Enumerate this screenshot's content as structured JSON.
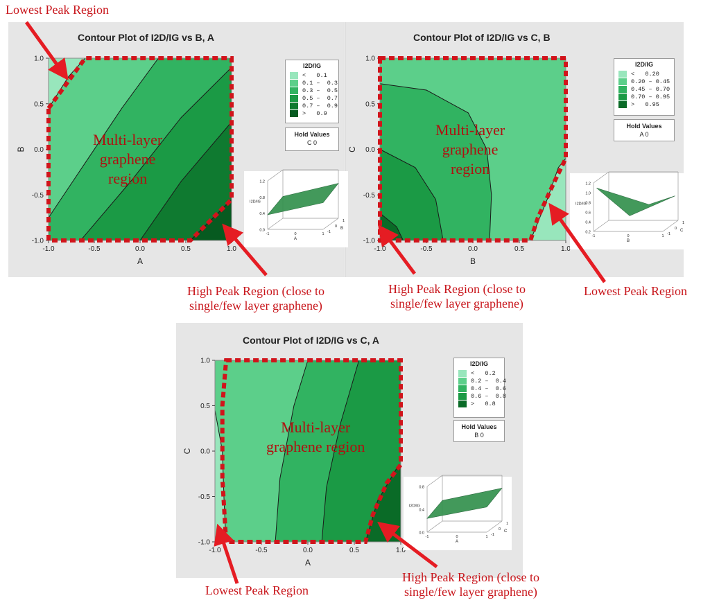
{
  "colors": {
    "panel_bg": "#e6e6e6",
    "plot_bg": "#e0e0e0",
    "boundary_dash": "#d1141b",
    "annotation_red": "#c8151b",
    "arrow_red": "#e51c23",
    "region_text": "#b01010",
    "contour_line": "#1a1a1a",
    "surface_green": "#2f8f4a"
  },
  "chart_data": [
    {
      "type": "contour",
      "title": "Contour Plot of I2D/IG vs B, A",
      "xlabel": "A",
      "ylabel": "B",
      "xlim": [
        -1.0,
        1.0
      ],
      "ylim": [
        -1.0,
        1.0
      ],
      "xticks": [
        "-1.0",
        "-0.5",
        "0.0",
        "0.5",
        "1.0"
      ],
      "yticks": [
        "-1.0",
        "-0.5",
        "0.0",
        "0.5",
        "1.0"
      ],
      "legend_title": "I2D/IG",
      "levels": [
        {
          "label": "<   0.1",
          "color": "#98e6bc"
        },
        {
          "label": "0.1 –  0.3",
          "color": "#5ccf8a"
        },
        {
          "label": "0.3 –  0.5",
          "color": "#31b361"
        },
        {
          "label": "0.5 –  0.7",
          "color": "#1b9a45"
        },
        {
          "label": "0.7 –  0.9",
          "color": "#0f7a30"
        },
        {
          "label": ">   0.9",
          "color": "#075a20"
        }
      ],
      "contour_lines": [
        {
          "level": 0.1,
          "points": [
            [
              -1.0,
              0.45
            ],
            [
              -0.78,
              0.8
            ],
            [
              -0.6,
              1.0
            ]
          ]
        },
        {
          "level": 0.3,
          "points": [
            [
              -1.0,
              -0.75
            ],
            [
              -0.6,
              -0.15
            ],
            [
              -0.2,
              0.45
            ],
            [
              0.2,
              1.0
            ]
          ]
        },
        {
          "level": 0.5,
          "points": [
            [
              -0.65,
              -1.0
            ],
            [
              -0.1,
              -0.35
            ],
            [
              0.45,
              0.35
            ],
            [
              1.0,
              0.9
            ]
          ]
        },
        {
          "level": 0.7,
          "points": [
            [
              0.0,
              -1.0
            ],
            [
              0.45,
              -0.35
            ],
            [
              1.0,
              0.3
            ]
          ]
        },
        {
          "level": 0.9,
          "points": [
            [
              0.55,
              -1.0
            ],
            [
              1.0,
              -0.55
            ]
          ]
        }
      ],
      "hold_values": {
        "title": "Hold Values",
        "value": "C 0"
      },
      "inset_3d": {
        "zlabel": "I2D/IG",
        "zticks": [
          "0.0",
          "0.4",
          "0.8",
          "1.2"
        ],
        "x_axis": "A",
        "y_axis": "B",
        "xticks": [
          "-1",
          "0",
          "1"
        ],
        "yticks": [
          "-1",
          "0",
          "1"
        ]
      }
    },
    {
      "type": "contour",
      "title": "Contour Plot of I2D/IG vs C, B",
      "xlabel": "B",
      "ylabel": "C",
      "xlim": [
        -1.0,
        1.0
      ],
      "ylim": [
        -1.0,
        1.0
      ],
      "xticks": [
        "-1.0",
        "-0.5",
        "0.0",
        "0.5",
        "1.0"
      ],
      "yticks": [
        "-1.0",
        "-0.5",
        "0.0",
        "0.5",
        "1.0"
      ],
      "legend_title": "I2D/IG",
      "levels": [
        {
          "label": "<   0.20",
          "color": "#98e6bc"
        },
        {
          "label": "0.20 – 0.45",
          "color": "#5ccf8a"
        },
        {
          "label": "0.45 – 0.70",
          "color": "#31b361"
        },
        {
          "label": "0.70 – 0.95",
          "color": "#1b9a45"
        },
        {
          "label": ">   0.95",
          "color": "#0a6b27"
        }
      ],
      "contour_lines": [
        {
          "level": 0.2,
          "points": [
            [
              0.62,
              -1.0
            ],
            [
              0.8,
              -0.55
            ],
            [
              0.92,
              -0.2
            ],
            [
              1.0,
              -0.1
            ]
          ]
        },
        {
          "level": 0.45,
          "points": [
            [
              -1.0,
              0.72
            ],
            [
              -0.5,
              0.65
            ],
            [
              -0.05,
              0.4
            ],
            [
              0.15,
              0.0
            ],
            [
              0.2,
              -0.5
            ],
            [
              0.18,
              -1.0
            ]
          ]
        },
        {
          "level": 0.7,
          "points": [
            [
              -1.0,
              0.0
            ],
            [
              -0.62,
              -0.2
            ],
            [
              -0.4,
              -0.55
            ],
            [
              -0.32,
              -1.0
            ]
          ]
        },
        {
          "level": 0.95,
          "points": [
            [
              -1.0,
              -0.7
            ],
            [
              -0.82,
              -0.85
            ],
            [
              -0.75,
              -1.0
            ]
          ]
        }
      ],
      "hold_values": {
        "title": "Hold Values",
        "value": "A 0"
      },
      "inset_3d": {
        "zlabel": "I2D/IG",
        "zticks": [
          "0.2",
          "0.4",
          "0.6",
          "0.8",
          "1.0",
          "1.2"
        ],
        "x_axis": "B",
        "y_axis": "C",
        "xticks": [
          "-1",
          "0",
          "1"
        ],
        "yticks": [
          "-1",
          "0",
          "1"
        ]
      }
    },
    {
      "type": "contour",
      "title": "Contour Plot of I2D/IG vs C, A",
      "xlabel": "A",
      "ylabel": "C",
      "xlim": [
        -1.0,
        1.0
      ],
      "ylim": [
        -1.0,
        1.0
      ],
      "xticks": [
        "-1.0",
        "-0.5",
        "0.0",
        "0.5",
        "1.0"
      ],
      "yticks": [
        "-1.0",
        "-0.5",
        "0.0",
        "0.5",
        "1.0"
      ],
      "legend_title": "I2D/IG",
      "levels": [
        {
          "label": "<   0.2",
          "color": "#98e6bc"
        },
        {
          "label": "0.2 –  0.4",
          "color": "#5ccf8a"
        },
        {
          "label": "0.4 –  0.6",
          "color": "#31b361"
        },
        {
          "label": "0.6 –  0.8",
          "color": "#1b9a45"
        },
        {
          "label": ">   0.8",
          "color": "#0a6b27"
        }
      ],
      "contour_lines": [
        {
          "level": 0.2,
          "points": [
            [
              -1.0,
              0.45
            ],
            [
              -0.92,
              0.0
            ],
            [
              -0.9,
              -0.6
            ],
            [
              -0.88,
              -1.0
            ]
          ]
        },
        {
          "level": 0.4,
          "points": [
            [
              -0.35,
              -1.0
            ],
            [
              -0.3,
              -0.3
            ],
            [
              -0.15,
              0.5
            ],
            [
              0.0,
              1.0
            ]
          ]
        },
        {
          "level": 0.6,
          "points": [
            [
              0.15,
              -1.0
            ],
            [
              0.2,
              -0.4
            ],
            [
              0.35,
              0.3
            ],
            [
              0.55,
              1.0
            ]
          ]
        },
        {
          "level": 0.8,
          "points": [
            [
              0.62,
              -1.0
            ],
            [
              0.75,
              -0.55
            ],
            [
              0.95,
              -0.2
            ],
            [
              1.0,
              -0.15
            ]
          ]
        }
      ],
      "hold_values": {
        "title": "Hold Values",
        "value": "B 0"
      },
      "inset_3d": {
        "zlabel": "I2D/IG",
        "zticks": [
          "0.0",
          "0.4",
          "0.8"
        ],
        "x_axis": "A",
        "y_axis": "C",
        "xticks": [
          "-1",
          "0",
          "1"
        ],
        "yticks": [
          "-1",
          "0",
          "1"
        ]
      }
    }
  ],
  "annotations": {
    "lowest_peak": "Lowest Peak Region",
    "high_peak_line1": "High Peak Region (close to",
    "high_peak_line2": "single/few layer graphene)",
    "multi_layer_1": "Multi-layer",
    "multi_layer_2": "graphene",
    "multi_layer_3": "region",
    "multi_layer_region": "graphene region"
  }
}
